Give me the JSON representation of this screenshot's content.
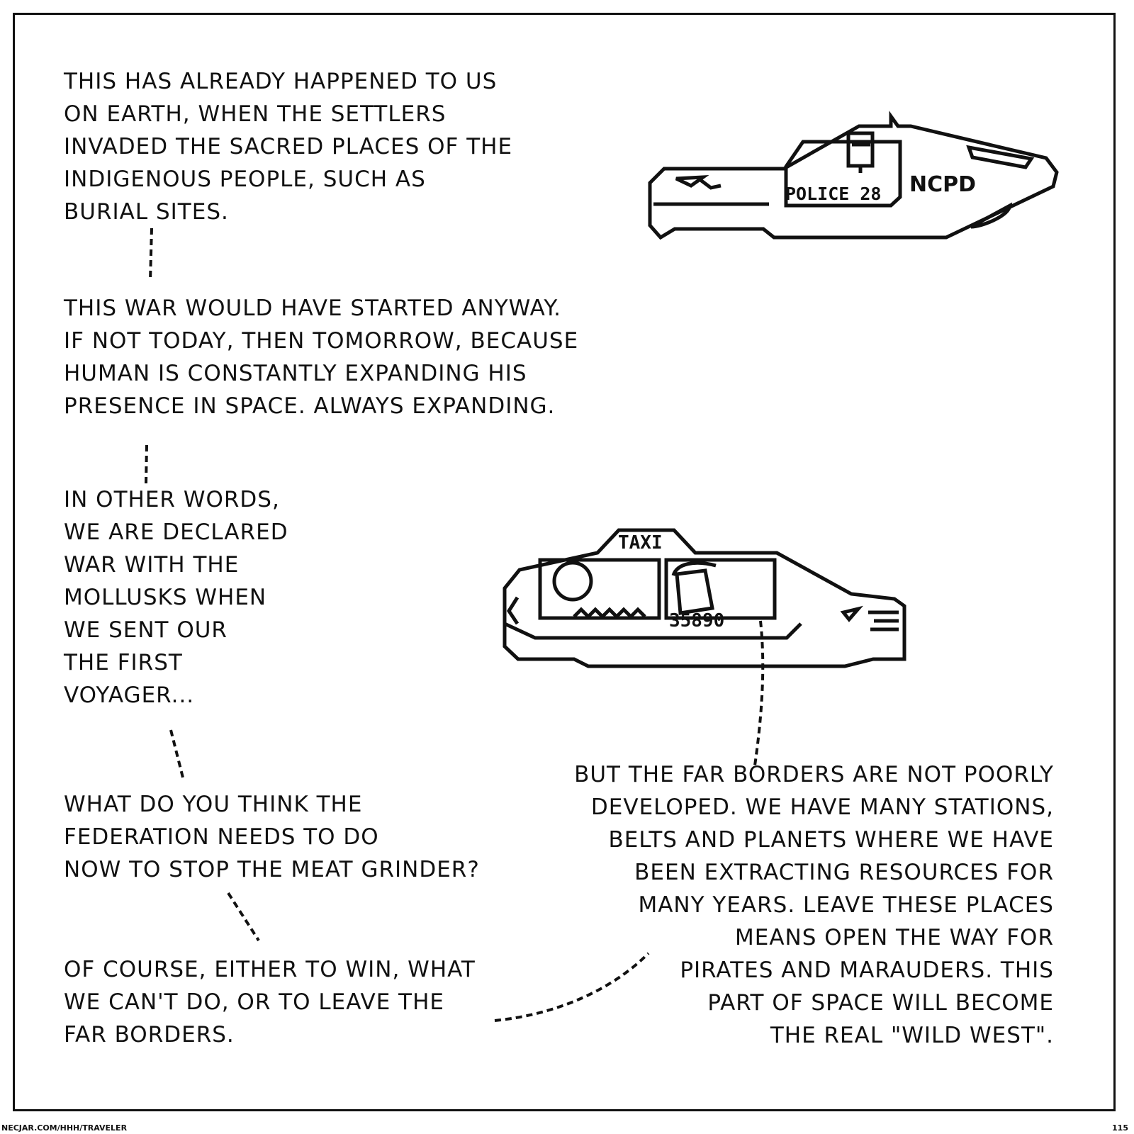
{
  "bubbles": {
    "b1": "This has already happened to us\non Earth, when the settlers\ninvaded the sacred places of the\nindigenous people, such as\nburial sites.",
    "b2": "This war would have started anyway.\nIf not today, then tomorrow, because\nhuman is constantly expanding his\npresence in space. Always expanding.",
    "b3": "In other words,\nwe are declared\nwar with the\nmollusks when\nwe sent our\nthe first\nVoyager...",
    "b4": "What do you think the\nFederation needs to do\nnow to stop the meat grinder?",
    "b5": "Of course, either to win, what\nwe can't do, or to leave the\nfar borders.",
    "b6": "But the far borders are not poorly\ndeveloped. We have many stations,\nbelts and planets where we have\nbeen extracting resources for\nmany years. Leave these places\nmeans open the way for\npirates and marauders. This\npart of space will become\nthe real \"Wild West\"."
  },
  "police_car": {
    "label": "POLICE 28",
    "brand": "NCPD"
  },
  "taxi": {
    "sign": "TAXI",
    "number": "35890"
  },
  "footer": {
    "url": "necjar.com/hhh/traveler",
    "page": "115"
  }
}
